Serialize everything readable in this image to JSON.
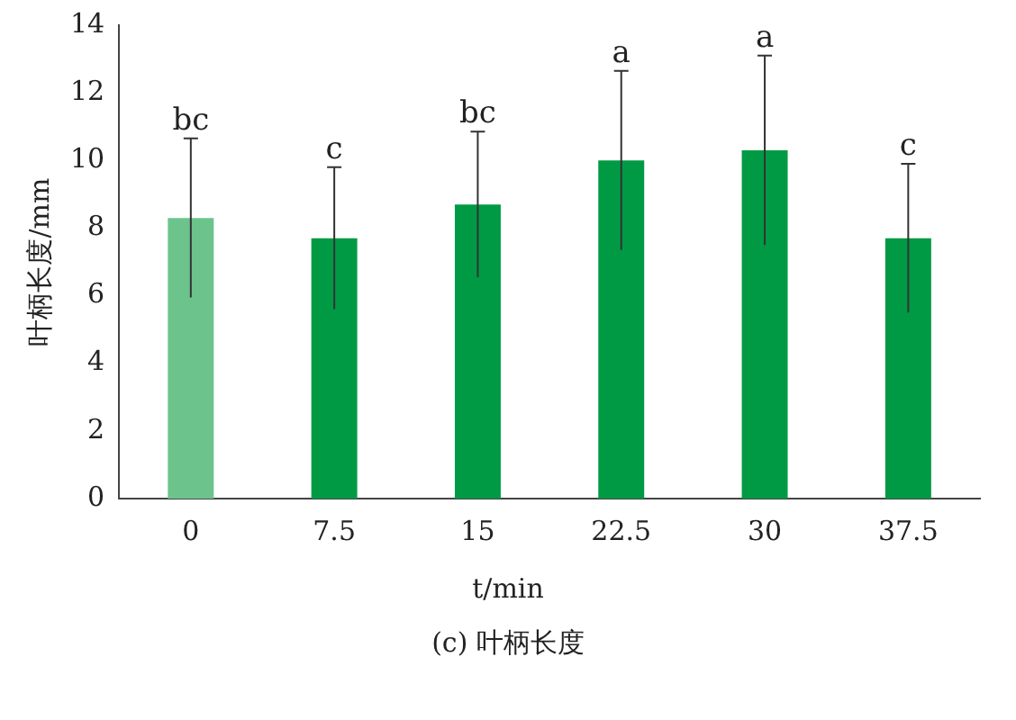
{
  "chart_data": {
    "type": "bar",
    "title": "(c) 叶柄长度",
    "xlabel": "t/min",
    "ylabel": "叶柄长度/mm",
    "categories": [
      "0",
      "7.5",
      "15",
      "22.5",
      "30",
      "37.5"
    ],
    "values": [
      8.3,
      7.7,
      8.7,
      10.0,
      10.3,
      7.7
    ],
    "errors": [
      2.35,
      2.1,
      2.15,
      2.65,
      2.8,
      2.2
    ],
    "colors": [
      "#6cc48c",
      "#009a44",
      "#009a44",
      "#009a44",
      "#009a44",
      "#009a44"
    ],
    "ylim": [
      0,
      14
    ],
    "yticks": [
      0,
      2,
      4,
      6,
      8,
      10,
      12,
      14
    ],
    "grid": false,
    "legend": false,
    "annotations": [
      {
        "text": "bc",
        "x": "0",
        "y": 10.65
      },
      {
        "text": "c",
        "x": "7.5",
        "y": 9.8
      },
      {
        "text": "bc",
        "x": "15",
        "y": 10.85
      },
      {
        "text": "a",
        "x": "22.5",
        "y": 12.65
      },
      {
        "text": "a",
        "x": "30",
        "y": 13.1
      },
      {
        "text": "c",
        "x": "37.5",
        "y": 9.9
      }
    ]
  }
}
